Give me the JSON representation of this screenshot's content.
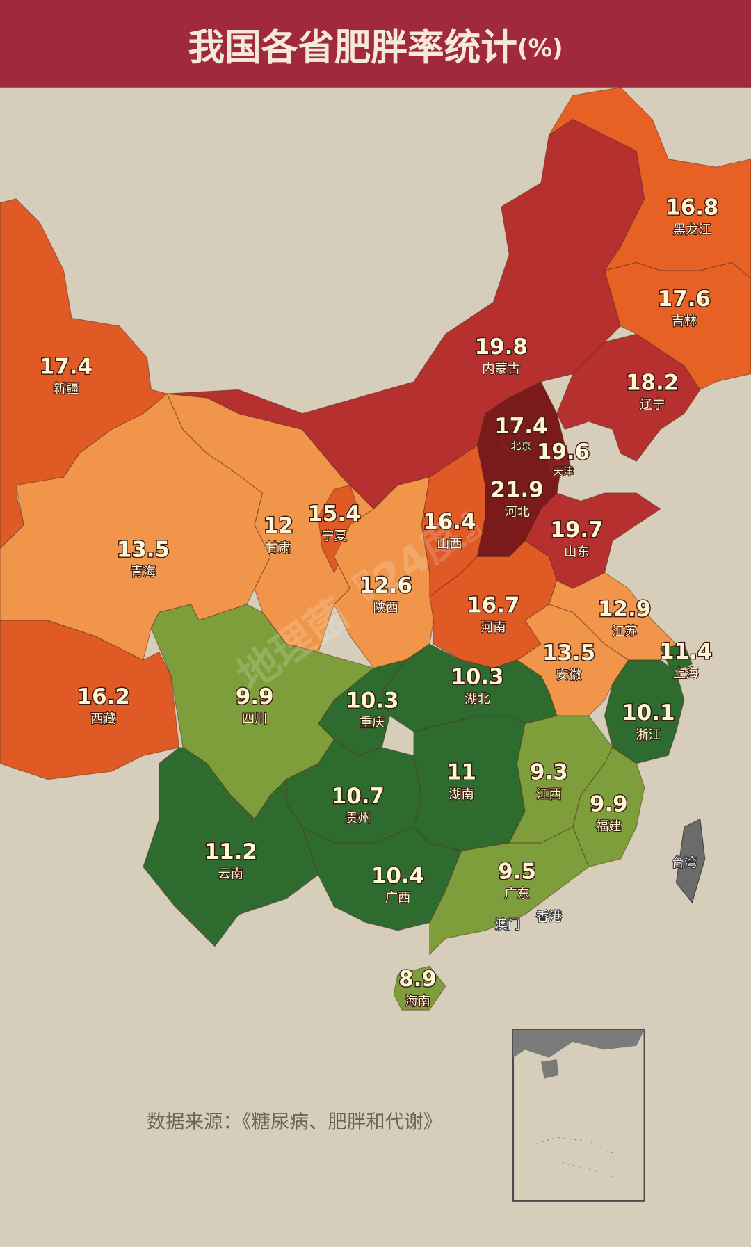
{
  "title": "我国各省肥胖率统计",
  "title_unit": "(%)",
  "provinces": [
    {
      "name": "新疆",
      "value": 17.4,
      "color": "#e05a25"
    },
    {
      "name": "西藏",
      "value": 16.2,
      "color": "#e05a25"
    },
    {
      "name": "青海",
      "value": 13.5,
      "color": "#f0954a"
    },
    {
      "name": "甘肃",
      "value": 12,
      "color": "#f0954a"
    },
    {
      "name": "内蒙古",
      "value": 19.8,
      "color": "#b5302e"
    },
    {
      "name": "宁夏",
      "value": 15.4,
      "color": "#e05a25"
    },
    {
      "name": "陕西",
      "value": 12.6,
      "color": "#f0954a"
    },
    {
      "name": "山西",
      "value": 16.4,
      "color": "#e05a25"
    },
    {
      "name": "河北",
      "value": 21.9,
      "color": "#7a1a1a"
    },
    {
      "name": "北京",
      "value": 17.4,
      "color": "#7d1c1c"
    },
    {
      "name": "天津",
      "value": 19.6,
      "color": "#8a2020"
    },
    {
      "name": "辽宁",
      "value": 18.2,
      "color": "#b5302e"
    },
    {
      "name": "吉林",
      "value": 17.6,
      "color": "#e76124"
    },
    {
      "name": "黑龙江",
      "value": 16.8,
      "color": "#e76124"
    },
    {
      "name": "山东",
      "value": 19.7,
      "color": "#b5302e"
    },
    {
      "name": "河南",
      "value": 16.7,
      "color": "#e05a25"
    },
    {
      "name": "江苏",
      "value": 12.9,
      "color": "#f0954a"
    },
    {
      "name": "安徽",
      "value": 13.5,
      "color": "#f0954a"
    },
    {
      "name": "上海",
      "value": 11.4,
      "color": "#2e6b2e"
    },
    {
      "name": "浙江",
      "value": 10.1,
      "color": "#2e6b2e"
    },
    {
      "name": "湖北",
      "value": 10.3,
      "color": "#2e6b2e"
    },
    {
      "name": "重庆",
      "value": 10.3,
      "color": "#2e6b2e"
    },
    {
      "name": "四川",
      "value": 9.9,
      "color": "#7d9e3a"
    },
    {
      "name": "贵州",
      "value": 10.7,
      "color": "#2e6b2e"
    },
    {
      "name": "云南",
      "value": 11.2,
      "color": "#2e6b2e"
    },
    {
      "name": "湖南",
      "value": 11,
      "color": "#2e6b2e"
    },
    {
      "name": "江西",
      "value": 9.3,
      "color": "#7d9e3a"
    },
    {
      "name": "福建",
      "value": 9.9,
      "color": "#7d9e3a"
    },
    {
      "name": "广西",
      "value": 10.4,
      "color": "#2e6b2e"
    },
    {
      "name": "广东",
      "value": 9.5,
      "color": "#7d9e3a"
    },
    {
      "name": "海南",
      "value": 8.9,
      "color": "#7d9e3a"
    }
  ],
  "regions_without_data": [
    {
      "name": "台湾"
    },
    {
      "name": "香港"
    },
    {
      "name": "澳门"
    }
  ],
  "source": "数据来源：《糖尿病、肥胖和代谢》",
  "watermark": "地理菌『24度』"
}
